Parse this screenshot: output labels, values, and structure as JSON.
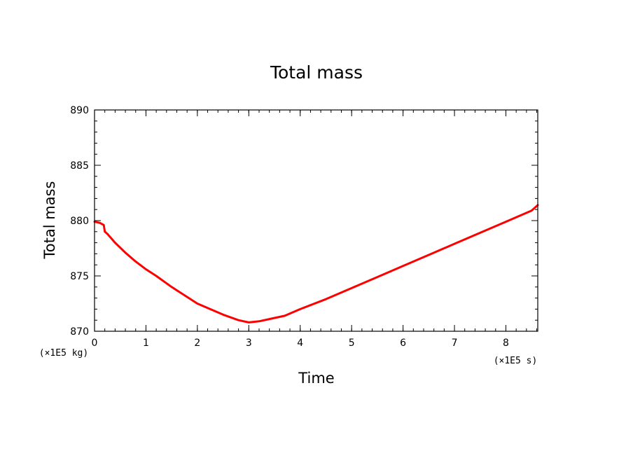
{
  "chart_data": {
    "type": "line",
    "title": "Total mass",
    "xlabel": "Time",
    "ylabel": "Total mass",
    "x_unit": "(×1E5 s)",
    "y_unit": "(×1E5 kg)",
    "xlim": [
      0,
      8.62
    ],
    "ylim": [
      870,
      890
    ],
    "x_ticks": [
      0,
      1,
      2,
      3,
      4,
      5,
      6,
      7,
      8
    ],
    "x_tick_labels": [
      "0",
      "1",
      "2",
      "3",
      "4",
      "5",
      "6",
      "7",
      "8"
    ],
    "y_ticks": [
      870,
      875,
      880,
      885,
      890
    ],
    "y_tick_labels": [
      "870",
      "875",
      "880",
      "885",
      "890"
    ],
    "grid": false,
    "series": [
      {
        "color": "#ff0000",
        "x": [
          0,
          0.1,
          0.18,
          0.2,
          0.25,
          0.4,
          0.6,
          0.8,
          1.0,
          1.2,
          1.5,
          2.0,
          2.5,
          2.8,
          3.0,
          3.2,
          3.4,
          3.7,
          4.0,
          4.5,
          5.0,
          5.5,
          6.0,
          6.5,
          7.0,
          7.5,
          8.0,
          8.5,
          8.62
        ],
        "y": [
          879.9,
          879.8,
          879.6,
          879.0,
          878.8,
          878.0,
          877.1,
          876.3,
          875.6,
          875.0,
          874.0,
          872.5,
          871.5,
          871.0,
          870.8,
          870.9,
          871.1,
          871.4,
          872.0,
          872.9,
          873.9,
          874.9,
          875.9,
          876.9,
          877.9,
          878.9,
          879.9,
          880.9,
          881.4
        ]
      }
    ]
  }
}
